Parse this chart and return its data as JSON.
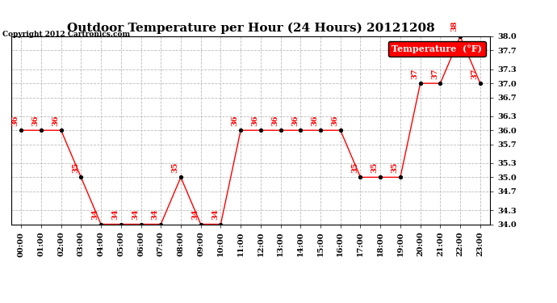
{
  "title": "Outdoor Temperature per Hour (24 Hours) 20121208",
  "copyright": "Copyright 2012 Cartronics.com",
  "legend_label": "Temperature  (°F)",
  "hours": [
    0,
    1,
    2,
    3,
    4,
    5,
    6,
    7,
    8,
    9,
    10,
    11,
    12,
    13,
    14,
    15,
    16,
    17,
    18,
    19,
    20,
    21,
    22,
    23
  ],
  "temperatures": [
    36,
    36,
    36,
    35,
    34,
    34,
    34,
    34,
    35,
    34,
    34,
    36,
    36,
    36,
    36,
    36,
    36,
    35,
    35,
    35,
    37,
    37,
    38,
    37
  ],
  "line_color": "red",
  "marker_color": "black",
  "marker_size": 3,
  "ylim": [
    34.0,
    38.0
  ],
  "yticks": [
    34.0,
    34.3,
    34.7,
    35.0,
    35.3,
    35.7,
    36.0,
    36.3,
    36.7,
    37.0,
    37.3,
    37.7,
    38.0
  ],
  "bg_color": "#ffffff",
  "grid_color": "#bbbbbb",
  "title_fontsize": 11,
  "tick_fontsize": 7,
  "annotation_fontsize": 7,
  "legend_bg": "red",
  "legend_text_color": "white",
  "legend_fontsize": 8
}
